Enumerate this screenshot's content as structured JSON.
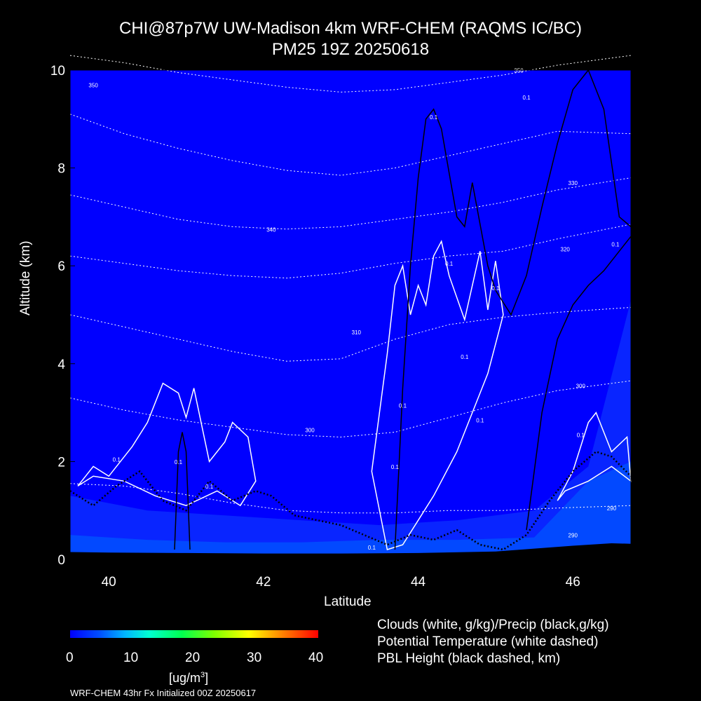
{
  "title_line1": "CHI@87p7W UW-Madison 4km WRF-CHEM (RAQMS IC/BC)",
  "title_line2": "PM25 19Z 20250618",
  "colorbar": {
    "ticks": [
      "0",
      "10",
      "20",
      "30",
      "40"
    ],
    "unit_prefix": "[ug/m",
    "unit_sup": "3",
    "unit_suffix": "]"
  },
  "legend": [
    "Clouds (white, g/kg)/Precip (black,g/kg)",
    "Potential Temperature (white dashed)",
    "PBL Height (black dashed, km)"
  ],
  "footer": "WRF-CHEM 43hr  Fx Initialized 00Z 20250617",
  "chart_data": {
    "type": "heatmap",
    "xlabel": "Latitude",
    "ylabel": "Altitude (km)",
    "xlim": [
      39.5,
      46.75
    ],
    "ylim": [
      0,
      10
    ],
    "x_ticks": [
      "40",
      "42",
      "44",
      "46"
    ],
    "y_ticks": [
      "0",
      "2",
      "4",
      "6",
      "8",
      "10"
    ],
    "colorscale": {
      "min": 0,
      "max": 40,
      "colors": [
        "#0000ff",
        "#00ffd0",
        "#00ff50",
        "#ffff00",
        "#ff0000"
      ]
    },
    "background_value_ugm3": 1,
    "theta_contours": [
      {
        "label": "290",
        "alt": [
          1.55,
          1.5,
          1.35,
          1.15,
          1.0,
          0.95,
          0.95,
          1.0,
          1.0,
          1.05,
          1.1
        ]
      },
      {
        "label": "300",
        "alt": [
          3.3,
          3.05,
          2.85,
          2.7,
          2.55,
          2.5,
          2.6,
          2.9,
          3.2,
          3.45,
          3.65
        ]
      },
      {
        "label": "310",
        "alt": [
          5.0,
          4.75,
          4.5,
          4.25,
          4.05,
          4.1,
          4.5,
          4.8,
          4.95,
          5.05,
          5.15
        ]
      },
      {
        "label": "320",
        "alt": [
          6.2,
          6.05,
          5.9,
          5.8,
          5.75,
          5.85,
          6.05,
          6.2,
          6.3,
          6.55,
          6.85
        ]
      },
      {
        "label": "330",
        "alt": [
          7.45,
          7.2,
          6.95,
          6.8,
          6.75,
          6.8,
          6.95,
          7.1,
          7.3,
          7.55,
          7.8
        ]
      },
      {
        "label": "340",
        "alt": [
          9.1,
          8.7,
          8.4,
          8.15,
          7.95,
          7.85,
          8.0,
          8.25,
          8.5,
          8.75,
          8.7
        ]
      },
      {
        "label": "350",
        "alt": [
          10.3,
          10.15,
          9.95,
          9.8,
          9.65,
          9.55,
          9.6,
          9.75,
          9.9,
          10.1,
          10.3
        ]
      }
    ],
    "theta_x": [
      39.5,
      40.2,
      40.9,
      41.6,
      42.3,
      43.0,
      43.7,
      44.4,
      45.1,
      45.8,
      46.75
    ],
    "cloud_contours": [
      {
        "label": "0.1",
        "lat": [
          39.6,
          39.8,
          40.0,
          40.3,
          40.5,
          40.7,
          40.9,
          41.0,
          41.1,
          41.3,
          41.5,
          41.6,
          41.8,
          41.9,
          41.7,
          41.4,
          41.0,
          40.6,
          40.2,
          39.8,
          39.6
        ],
        "alt": [
          1.5,
          1.9,
          1.7,
          2.3,
          2.8,
          3.6,
          3.4,
          2.9,
          3.5,
          2.0,
          2.4,
          2.8,
          2.5,
          1.6,
          1.1,
          1.4,
          1.1,
          1.3,
          1.6,
          1.7,
          1.5
        ]
      },
      {
        "label": "0.1",
        "lat": [
          43.4,
          43.6,
          43.7,
          43.8,
          43.9,
          44.0,
          44.1,
          44.2,
          44.3,
          44.4,
          44.6,
          44.8,
          44.9,
          45.0,
          45.1,
          44.9,
          44.7,
          44.5,
          44.2,
          44.0,
          43.8,
          43.6,
          43.4
        ],
        "alt": [
          1.8,
          4.2,
          5.6,
          6.0,
          5.0,
          5.6,
          5.2,
          6.2,
          6.5,
          5.8,
          4.9,
          6.3,
          5.1,
          6.1,
          5.0,
          3.8,
          3.0,
          2.2,
          1.3,
          0.8,
          0.3,
          0.2,
          1.8
        ]
      },
      {
        "label": "0.1",
        "lat": [
          45.8,
          46.0,
          46.2,
          46.3,
          46.5,
          46.7,
          46.75,
          46.5,
          46.2,
          45.9,
          45.8
        ],
        "alt": [
          1.2,
          1.8,
          2.8,
          3.0,
          2.2,
          2.5,
          1.6,
          1.9,
          1.6,
          1.4,
          1.2
        ]
      }
    ],
    "precip_contours": [
      {
        "label": "0.1",
        "lat": [
          43.7,
          43.8,
          43.9,
          44.0,
          44.1,
          44.2,
          44.3,
          44.5,
          44.6,
          44.7,
          44.9,
          45.0,
          45.2,
          45.4,
          45.6,
          45.8,
          46.0,
          46.2,
          46.4,
          46.6,
          46.75
        ],
        "alt": [
          0.2,
          3.5,
          6.0,
          7.8,
          9.0,
          9.2,
          8.8,
          7.0,
          6.8,
          7.7,
          6.0,
          5.5,
          5.0,
          5.8,
          7.2,
          8.5,
          9.6,
          10.0,
          9.2,
          7.0,
          6.8
        ]
      },
      {
        "label": "0.1",
        "lat": [
          45.4,
          45.5,
          45.6,
          45.8,
          46.0,
          46.2,
          46.4,
          46.6,
          46.75
        ],
        "alt": [
          0.6,
          1.8,
          3.0,
          4.5,
          5.2,
          5.6,
          5.9,
          6.3,
          6.6
        ]
      },
      {
        "label": "",
        "lat": [
          40.85,
          40.9,
          40.95,
          41.0,
          41.05
        ],
        "alt": [
          0.2,
          2.2,
          2.6,
          2.2,
          0.2
        ]
      }
    ],
    "pbl_height_km": {
      "lat": [
        39.5,
        39.8,
        40.1,
        40.4,
        40.7,
        41.0,
        41.3,
        41.6,
        41.9,
        42.1,
        42.4,
        42.7,
        43.0,
        43.3,
        43.6,
        43.9,
        44.2,
        44.5,
        44.8,
        45.1,
        45.4,
        45.7,
        46.0,
        46.3,
        46.5,
        46.75
      ],
      "alt": [
        1.4,
        1.1,
        1.5,
        1.8,
        1.2,
        1.0,
        1.6,
        1.2,
        1.4,
        1.3,
        0.9,
        0.8,
        0.7,
        0.5,
        0.3,
        0.5,
        0.4,
        0.6,
        0.3,
        0.2,
        0.5,
        1.2,
        1.8,
        2.2,
        2.1,
        1.7
      ]
    },
    "terrain_height_km": {
      "lat": [
        39.5,
        40.0,
        41.0,
        42.0,
        43.0,
        44.0,
        45.0,
        45.5,
        46.0,
        46.5,
        46.75
      ],
      "alt": [
        0.15,
        0.14,
        0.13,
        0.12,
        0.12,
        0.13,
        0.16,
        0.22,
        0.28,
        0.33,
        0.32
      ]
    },
    "labels": [
      {
        "text": "350",
        "lat": 39.8,
        "alt": 9.65
      },
      {
        "text": "350",
        "lat": 45.3,
        "alt": 9.95
      },
      {
        "text": "340",
        "lat": 42.1,
        "alt": 6.7
      },
      {
        "text": "330",
        "lat": 46.0,
        "alt": 7.65
      },
      {
        "text": "320",
        "lat": 45.9,
        "alt": 6.3
      },
      {
        "text": "310",
        "lat": 43.2,
        "alt": 4.6
      },
      {
        "text": "300",
        "lat": 42.6,
        "alt": 2.6
      },
      {
        "text": "300",
        "lat": 46.1,
        "alt": 3.5
      },
      {
        "text": "290",
        "lat": 46.5,
        "alt": 1.0
      },
      {
        "text": "290",
        "lat": 46.0,
        "alt": 0.45
      },
      {
        "text": "0.1",
        "lat": 40.1,
        "alt": 2.0
      },
      {
        "text": "0.1",
        "lat": 40.9,
        "alt": 1.95
      },
      {
        "text": "0.1",
        "lat": 41.3,
        "alt": 1.45
      },
      {
        "text": "0.1",
        "lat": 43.7,
        "alt": 1.85
      },
      {
        "text": "0.1",
        "lat": 43.8,
        "alt": 3.1
      },
      {
        "text": "0.1",
        "lat": 44.8,
        "alt": 2.8
      },
      {
        "text": "0.1",
        "lat": 44.6,
        "alt": 4.1
      },
      {
        "text": "0.1",
        "lat": 45.0,
        "alt": 5.5
      },
      {
        "text": "0.1",
        "lat": 44.2,
        "alt": 9.0
      },
      {
        "text": "0.1",
        "lat": 45.4,
        "alt": 9.4
      },
      {
        "text": "0.1",
        "lat": 46.55,
        "alt": 6.4
      },
      {
        "text": "0.1",
        "lat": 46.1,
        "alt": 2.5
      },
      {
        "text": "0.1",
        "lat": 43.4,
        "alt": 0.2
      },
      {
        "text": "0.1",
        "lat": 44.4,
        "alt": 6.0
      }
    ]
  }
}
